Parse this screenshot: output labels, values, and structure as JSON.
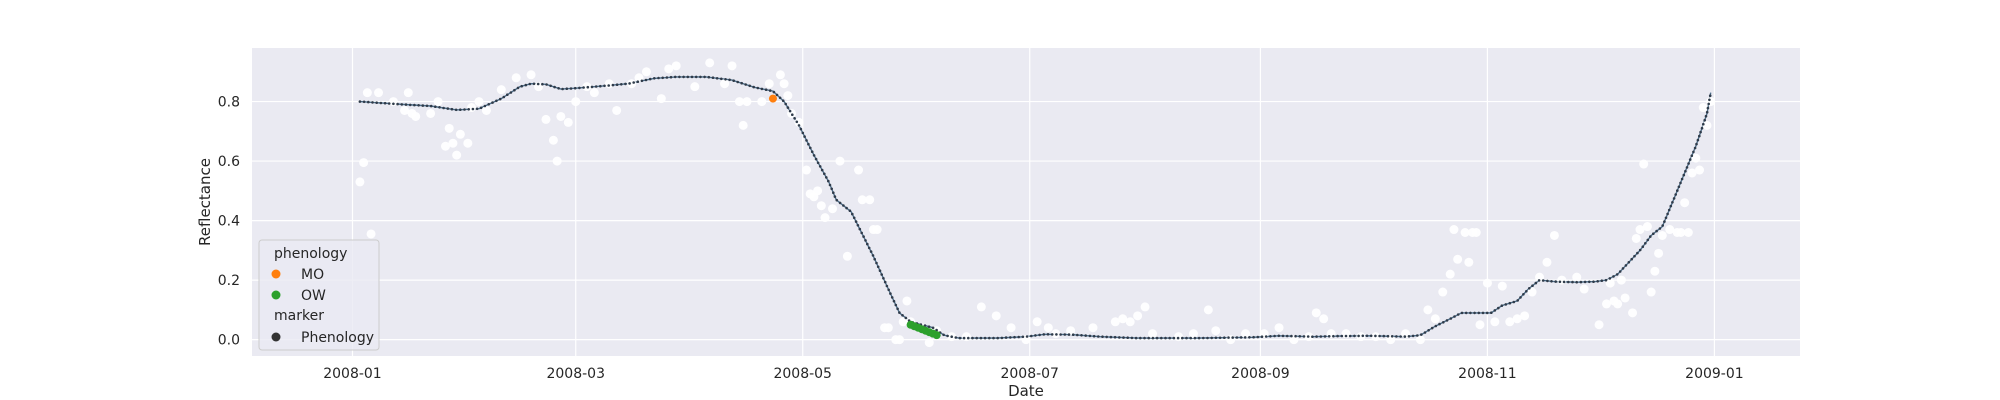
{
  "chart_data": {
    "type": "scatter",
    "title": "",
    "xlabel": "Date",
    "ylabel": "Reflectance",
    "xlim": [
      "2007-12-05",
      "2009-01-24"
    ],
    "ylim": [
      -0.055,
      0.98
    ],
    "x_ticks": [
      "2008-01-01",
      "2008-03-01",
      "2008-05-01",
      "2008-07-01",
      "2008-09-01",
      "2008-11-01",
      "2009-01-01"
    ],
    "x_tick_labels": [
      "2008-01",
      "2008-03",
      "2008-05",
      "2008-07",
      "2008-09",
      "2008-11",
      "2009-01"
    ],
    "y_ticks": [
      0.0,
      0.2,
      0.4,
      0.6,
      0.8
    ],
    "y_tick_labels": [
      "0.0",
      "0.2",
      "0.4",
      "0.6",
      "0.8"
    ],
    "grid": true,
    "background": "#eaeaf2",
    "legend": {
      "position": "lower-left",
      "title": "phenology",
      "entries": [
        {
          "label": "MO",
          "color": "#ff7f0e"
        },
        {
          "label": "OW",
          "color": "#2ca02c"
        }
      ],
      "marker_title": "marker",
      "marker_entries": [
        {
          "label": "Phenology",
          "color": "#333333"
        }
      ]
    },
    "series": [
      {
        "role": "observations",
        "color": "#ffffff",
        "points": [
          [
            "2008-01-03",
            0.53
          ],
          [
            "2008-01-04",
            0.595
          ],
          [
            "2008-01-05",
            0.83
          ],
          [
            "2008-01-06",
            0.355
          ],
          [
            "2008-01-08",
            0.83
          ],
          [
            "2008-01-12",
            0.8
          ],
          [
            "2008-01-15",
            0.77
          ],
          [
            "2008-01-16",
            0.83
          ],
          [
            "2008-01-17",
            0.76
          ],
          [
            "2008-01-18",
            0.75
          ],
          [
            "2008-01-22",
            0.76
          ],
          [
            "2008-01-24",
            0.8
          ],
          [
            "2008-01-26",
            0.65
          ],
          [
            "2008-01-27",
            0.71
          ],
          [
            "2008-01-28",
            0.66
          ],
          [
            "2008-01-29",
            0.62
          ],
          [
            "2008-01-30",
            0.69
          ],
          [
            "2008-02-01",
            0.66
          ],
          [
            "2008-02-02",
            0.78
          ],
          [
            "2008-02-04",
            0.8
          ],
          [
            "2008-02-06",
            0.77
          ],
          [
            "2008-02-10",
            0.84
          ],
          [
            "2008-02-14",
            0.88
          ],
          [
            "2008-02-18",
            0.89
          ],
          [
            "2008-02-20",
            0.85
          ],
          [
            "2008-02-22",
            0.74
          ],
          [
            "2008-02-24",
            0.67
          ],
          [
            "2008-02-25",
            0.6
          ],
          [
            "2008-02-26",
            0.75
          ],
          [
            "2008-02-28",
            0.73
          ],
          [
            "2008-03-01",
            0.8
          ],
          [
            "2008-03-04",
            0.85
          ],
          [
            "2008-03-06",
            0.83
          ],
          [
            "2008-03-10",
            0.86
          ],
          [
            "2008-03-12",
            0.77
          ],
          [
            "2008-03-16",
            0.86
          ],
          [
            "2008-03-18",
            0.88
          ],
          [
            "2008-03-20",
            0.9
          ],
          [
            "2008-03-24",
            0.81
          ],
          [
            "2008-03-26",
            0.91
          ],
          [
            "2008-03-28",
            0.92
          ],
          [
            "2008-04-02",
            0.85
          ],
          [
            "2008-04-06",
            0.93
          ],
          [
            "2008-04-10",
            0.86
          ],
          [
            "2008-04-12",
            0.92
          ],
          [
            "2008-04-14",
            0.8
          ],
          [
            "2008-04-15",
            0.72
          ],
          [
            "2008-04-16",
            0.8
          ],
          [
            "2008-04-20",
            0.8
          ],
          [
            "2008-04-22",
            0.86
          ],
          [
            "2008-04-25",
            0.89
          ],
          [
            "2008-04-26",
            0.86
          ],
          [
            "2008-04-27",
            0.82
          ],
          [
            "2008-04-28",
            0.76
          ],
          [
            "2008-04-30",
            0.73
          ],
          [
            "2008-05-02",
            0.57
          ],
          [
            "2008-05-03",
            0.49
          ],
          [
            "2008-05-04",
            0.48
          ],
          [
            "2008-05-05",
            0.5
          ],
          [
            "2008-05-06",
            0.45
          ],
          [
            "2008-05-07",
            0.41
          ],
          [
            "2008-05-09",
            0.44
          ],
          [
            "2008-05-11",
            0.6
          ],
          [
            "2008-05-13",
            0.28
          ],
          [
            "2008-05-16",
            0.57
          ],
          [
            "2008-05-17",
            0.47
          ],
          [
            "2008-05-19",
            0.47
          ],
          [
            "2008-05-20",
            0.37
          ],
          [
            "2008-05-21",
            0.37
          ],
          [
            "2008-05-23",
            0.04
          ],
          [
            "2008-05-24",
            0.04
          ],
          [
            "2008-05-26",
            0.0
          ],
          [
            "2008-05-27",
            0.0
          ],
          [
            "2008-05-28",
            0.06
          ],
          [
            "2008-05-29",
            0.13
          ],
          [
            "2008-05-30",
            0.06
          ],
          [
            "2008-06-02",
            0.04
          ],
          [
            "2008-06-04",
            -0.01
          ],
          [
            "2008-06-06",
            0.03
          ],
          [
            "2008-06-10",
            0.01
          ],
          [
            "2008-06-14",
            0.01
          ],
          [
            "2008-06-18",
            0.11
          ],
          [
            "2008-06-22",
            0.08
          ],
          [
            "2008-06-26",
            0.04
          ],
          [
            "2008-06-30",
            0.0
          ],
          [
            "2008-07-03",
            0.06
          ],
          [
            "2008-07-06",
            0.04
          ],
          [
            "2008-07-08",
            0.02
          ],
          [
            "2008-07-12",
            0.03
          ],
          [
            "2008-07-18",
            0.04
          ],
          [
            "2008-07-24",
            0.06
          ],
          [
            "2008-07-26",
            0.07
          ],
          [
            "2008-07-28",
            0.06
          ],
          [
            "2008-07-30",
            0.08
          ],
          [
            "2008-08-01",
            0.11
          ],
          [
            "2008-08-03",
            0.02
          ],
          [
            "2008-08-10",
            0.01
          ],
          [
            "2008-08-14",
            0.02
          ],
          [
            "2008-08-18",
            0.1
          ],
          [
            "2008-08-20",
            0.03
          ],
          [
            "2008-08-24",
            0.0
          ],
          [
            "2008-08-28",
            0.02
          ],
          [
            "2008-09-02",
            0.02
          ],
          [
            "2008-09-06",
            0.04
          ],
          [
            "2008-09-10",
            0.0
          ],
          [
            "2008-09-14",
            0.01
          ],
          [
            "2008-09-16",
            0.09
          ],
          [
            "2008-09-18",
            0.07
          ],
          [
            "2008-09-20",
            0.02
          ],
          [
            "2008-09-24",
            0.02
          ],
          [
            "2008-09-28",
            0.01
          ],
          [
            "2008-10-02",
            0.01
          ],
          [
            "2008-10-06",
            0.0
          ],
          [
            "2008-10-10",
            0.02
          ],
          [
            "2008-10-14",
            0.0
          ],
          [
            "2008-10-16",
            0.1
          ],
          [
            "2008-10-18",
            0.07
          ],
          [
            "2008-10-20",
            0.16
          ],
          [
            "2008-10-22",
            0.22
          ],
          [
            "2008-10-23",
            0.37
          ],
          [
            "2008-10-24",
            0.27
          ],
          [
            "2008-10-26",
            0.36
          ],
          [
            "2008-10-27",
            0.26
          ],
          [
            "2008-10-28",
            0.36
          ],
          [
            "2008-10-29",
            0.36
          ],
          [
            "2008-10-30",
            0.05
          ],
          [
            "2008-11-01",
            0.19
          ],
          [
            "2008-11-03",
            0.06
          ],
          [
            "2008-11-05",
            0.18
          ],
          [
            "2008-11-07",
            0.06
          ],
          [
            "2008-11-09",
            0.07
          ],
          [
            "2008-11-11",
            0.08
          ],
          [
            "2008-11-13",
            0.16
          ],
          [
            "2008-11-15",
            0.21
          ],
          [
            "2008-11-17",
            0.26
          ],
          [
            "2008-11-19",
            0.35
          ],
          [
            "2008-11-21",
            0.2
          ],
          [
            "2008-11-25",
            0.21
          ],
          [
            "2008-11-27",
            0.17
          ],
          [
            "2008-12-01",
            0.05
          ],
          [
            "2008-12-03",
            0.12
          ],
          [
            "2008-12-04",
            0.19
          ],
          [
            "2008-12-05",
            0.13
          ],
          [
            "2008-12-06",
            0.12
          ],
          [
            "2008-12-07",
            0.2
          ],
          [
            "2008-12-08",
            0.14
          ],
          [
            "2008-12-10",
            0.09
          ],
          [
            "2008-12-11",
            0.34
          ],
          [
            "2008-12-12",
            0.37
          ],
          [
            "2008-12-13",
            0.59
          ],
          [
            "2008-12-14",
            0.38
          ],
          [
            "2008-12-15",
            0.16
          ],
          [
            "2008-12-16",
            0.23
          ],
          [
            "2008-12-17",
            0.29
          ],
          [
            "2008-12-18",
            0.35
          ],
          [
            "2008-12-20",
            0.37
          ],
          [
            "2008-12-22",
            0.36
          ],
          [
            "2008-12-23",
            0.36
          ],
          [
            "2008-12-24",
            0.46
          ],
          [
            "2008-12-25",
            0.36
          ],
          [
            "2008-12-26",
            0.56
          ],
          [
            "2008-12-27",
            0.61
          ],
          [
            "2008-12-28",
            0.57
          ],
          [
            "2008-12-29",
            0.78
          ],
          [
            "2008-12-30",
            0.72
          ],
          [
            "2008-12-31",
            0.8
          ]
        ]
      },
      {
        "role": "fitted-curve",
        "color": "#4c6e8a",
        "points": [
          [
            "2008-01-03",
            0.8
          ],
          [
            "2008-01-15",
            0.79
          ],
          [
            "2008-01-22",
            0.785
          ],
          [
            "2008-01-29",
            0.772
          ],
          [
            "2008-02-04",
            0.776
          ],
          [
            "2008-02-10",
            0.81
          ],
          [
            "2008-02-15",
            0.85
          ],
          [
            "2008-02-18",
            0.86
          ],
          [
            "2008-02-22",
            0.858
          ],
          [
            "2008-02-26",
            0.842
          ],
          [
            "2008-03-01",
            0.845
          ],
          [
            "2008-03-08",
            0.852
          ],
          [
            "2008-03-15",
            0.86
          ],
          [
            "2008-03-22",
            0.878
          ],
          [
            "2008-03-28",
            0.883
          ],
          [
            "2008-04-05",
            0.883
          ],
          [
            "2008-04-12",
            0.872
          ],
          [
            "2008-04-18",
            0.848
          ],
          [
            "2008-04-23",
            0.835
          ],
          [
            "2008-04-26",
            0.8
          ],
          [
            "2008-04-30",
            0.72
          ],
          [
            "2008-05-04",
            0.62
          ],
          [
            "2008-05-08",
            0.53
          ],
          [
            "2008-05-10",
            0.47
          ],
          [
            "2008-05-14",
            0.43
          ],
          [
            "2008-05-16",
            0.38
          ],
          [
            "2008-05-20",
            0.28
          ],
          [
            "2008-05-24",
            0.17
          ],
          [
            "2008-05-27",
            0.09
          ],
          [
            "2008-05-30",
            0.06
          ],
          [
            "2008-06-05",
            0.04
          ],
          [
            "2008-06-08",
            0.015
          ],
          [
            "2008-06-12",
            0.005
          ],
          [
            "2008-06-22",
            0.005
          ],
          [
            "2008-06-30",
            0.01
          ],
          [
            "2008-07-05",
            0.018
          ],
          [
            "2008-07-12",
            0.017
          ],
          [
            "2008-07-20",
            0.01
          ],
          [
            "2008-07-30",
            0.005
          ],
          [
            "2008-08-15",
            0.005
          ],
          [
            "2008-08-30",
            0.008
          ],
          [
            "2008-09-06",
            0.013
          ],
          [
            "2008-09-15",
            0.01
          ],
          [
            "2008-09-22",
            0.012
          ],
          [
            "2008-10-01",
            0.013
          ],
          [
            "2008-10-10",
            0.01
          ],
          [
            "2008-10-14",
            0.015
          ],
          [
            "2008-10-18",
            0.045
          ],
          [
            "2008-10-22",
            0.07
          ],
          [
            "2008-10-25",
            0.09
          ],
          [
            "2008-10-29",
            0.09
          ],
          [
            "2008-11-02",
            0.09
          ],
          [
            "2008-11-05",
            0.115
          ],
          [
            "2008-11-09",
            0.13
          ],
          [
            "2008-11-12",
            0.17
          ],
          [
            "2008-11-15",
            0.2
          ],
          [
            "2008-11-19",
            0.195
          ],
          [
            "2008-11-25",
            0.193
          ],
          [
            "2008-11-30",
            0.195
          ],
          [
            "2008-12-03",
            0.2
          ],
          [
            "2008-12-06",
            0.22
          ],
          [
            "2008-12-09",
            0.26
          ],
          [
            "2008-12-12",
            0.3
          ],
          [
            "2008-12-15",
            0.35
          ],
          [
            "2008-12-18",
            0.38
          ],
          [
            "2008-12-21",
            0.47
          ],
          [
            "2008-12-24",
            0.56
          ],
          [
            "2008-12-27",
            0.65
          ],
          [
            "2008-12-30",
            0.76
          ],
          [
            "2008-12-31",
            0.83
          ]
        ]
      },
      {
        "name": "MO",
        "color": "#ff7f0e",
        "points": [
          [
            "2008-04-23",
            0.81
          ]
        ]
      },
      {
        "name": "OW",
        "color": "#2ca02c",
        "points": [
          [
            "2008-05-30",
            0.05
          ],
          [
            "2008-05-31",
            0.045
          ],
          [
            "2008-06-01",
            0.04
          ],
          [
            "2008-06-02",
            0.035
          ],
          [
            "2008-06-03",
            0.03
          ],
          [
            "2008-06-04",
            0.025
          ],
          [
            "2008-06-05",
            0.02
          ],
          [
            "2008-06-06",
            0.015
          ]
        ]
      }
    ]
  }
}
